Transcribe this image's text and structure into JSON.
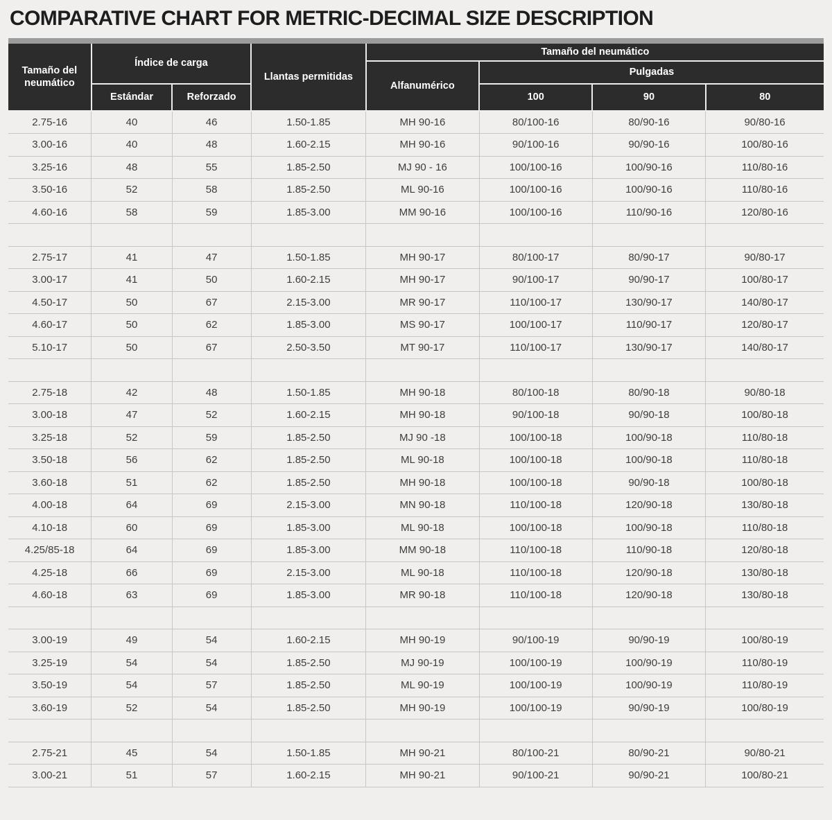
{
  "title": "COMPARATIVE CHART FOR METRIC-DECIMAL SIZE DESCRIPTION",
  "header": {
    "tire_size_left": "Tamaño del neumático",
    "load_index": "Índice de carga",
    "standard": "Estándar",
    "reinforced": "Reforzado",
    "rims": "Llantas permitidas",
    "tire_size_right": "Tamaño del neumático",
    "alphanumeric": "Alfanumérico",
    "inches": "Pulgadas",
    "inch_100": "100",
    "inch_90": "90",
    "inch_80": "80"
  },
  "chart_data": {
    "type": "table",
    "title": "COMPARATIVE CHART FOR METRIC-DECIMAL SIZE DESCRIPTION",
    "columns": [
      "Tamaño del neumático",
      "Índice de carga - Estándar",
      "Índice de carga - Reforzado",
      "Llantas permitidas",
      "Tamaño del neumático - Alfanumérico",
      "Tamaño del neumático - Pulgadas 100",
      "Tamaño del neumático - Pulgadas 90",
      "Tamaño del neumático - Pulgadas 80"
    ],
    "sections": [
      [
        [
          "2.75-16",
          "40",
          "46",
          "1.50-1.85",
          "MH 90-16",
          "80/100-16",
          "80/90-16",
          "90/80-16"
        ],
        [
          "3.00-16",
          "40",
          "48",
          "1.60-2.15",
          "MH 90-16",
          "90/100-16",
          "90/90-16",
          "100/80-16"
        ],
        [
          "3.25-16",
          "48",
          "55",
          "1.85-2.50",
          "MJ 90 - 16",
          "100/100-16",
          "100/90-16",
          "110/80-16"
        ],
        [
          "3.50-16",
          "52",
          "58",
          "1.85-2.50",
          "ML 90-16",
          "100/100-16",
          "100/90-16",
          "110/80-16"
        ],
        [
          "4.60-16",
          "58",
          "59",
          "1.85-3.00",
          "MM 90-16",
          "100/100-16",
          "110/90-16",
          "120/80-16"
        ]
      ],
      [
        [
          "2.75-17",
          "41",
          "47",
          "1.50-1.85",
          "MH 90-17",
          "80/100-17",
          "80/90-17",
          "90/80-17"
        ],
        [
          "3.00-17",
          "41",
          "50",
          "1.60-2.15",
          "MH 90-17",
          "90/100-17",
          "90/90-17",
          "100/80-17"
        ],
        [
          "4.50-17",
          "50",
          "67",
          "2.15-3.00",
          "MR 90-17",
          "110/100-17",
          "130/90-17",
          "140/80-17"
        ],
        [
          "4.60-17",
          "50",
          "62",
          "1.85-3.00",
          "MS 90-17",
          "100/100-17",
          "110/90-17",
          "120/80-17"
        ],
        [
          "5.10-17",
          "50",
          "67",
          "2.50-3.50",
          "MT 90-17",
          "110/100-17",
          "130/90-17",
          "140/80-17"
        ]
      ],
      [
        [
          "2.75-18",
          "42",
          "48",
          "1.50-1.85",
          "MH 90-18",
          "80/100-18",
          "80/90-18",
          "90/80-18"
        ],
        [
          "3.00-18",
          "47",
          "52",
          "1.60-2.15",
          "MH 90-18",
          "90/100-18",
          "90/90-18",
          "100/80-18"
        ],
        [
          "3.25-18",
          "52",
          "59",
          "1.85-2.50",
          "MJ 90 -18",
          "100/100-18",
          "100/90-18",
          "110/80-18"
        ],
        [
          "3.50-18",
          "56",
          "62",
          "1.85-2.50",
          "ML 90-18",
          "100/100-18",
          "100/90-18",
          "110/80-18"
        ],
        [
          "3.60-18",
          "51",
          "62",
          "1.85-2.50",
          "MH 90-18",
          "100/100-18",
          "90/90-18",
          "100/80-18"
        ],
        [
          "4.00-18",
          "64",
          "69",
          "2.15-3.00",
          "MN 90-18",
          "110/100-18",
          "120/90-18",
          "130/80-18"
        ],
        [
          "4.10-18",
          "60",
          "69",
          "1.85-3.00",
          "ML 90-18",
          "100/100-18",
          "100/90-18",
          "110/80-18"
        ],
        [
          "4.25/85-18",
          "64",
          "69",
          "1.85-3.00",
          "MM 90-18",
          "110/100-18",
          "110/90-18",
          "120/80-18"
        ],
        [
          "4.25-18",
          "66",
          "69",
          "2.15-3.00",
          "ML 90-18",
          "110/100-18",
          "120/90-18",
          "130/80-18"
        ],
        [
          "4.60-18",
          "63",
          "69",
          "1.85-3.00",
          "MR 90-18",
          "110/100-18",
          "120/90-18",
          "130/80-18"
        ]
      ],
      [
        [
          "3.00-19",
          "49",
          "54",
          "1.60-2.15",
          "MH 90-19",
          "90/100-19",
          "90/90-19",
          "100/80-19"
        ],
        [
          "3.25-19",
          "54",
          "54",
          "1.85-2.50",
          "MJ 90-19",
          "100/100-19",
          "100/90-19",
          "110/80-19"
        ],
        [
          "3.50-19",
          "54",
          "57",
          "1.85-2.50",
          "ML 90-19",
          "100/100-19",
          "100/90-19",
          "110/80-19"
        ],
        [
          "3.60-19",
          "52",
          "54",
          "1.85-2.50",
          "MH 90-19",
          "100/100-19",
          "90/90-19",
          "100/80-19"
        ]
      ],
      [
        [
          "2.75-21",
          "45",
          "54",
          "1.50-1.85",
          "MH 90-21",
          "80/100-21",
          "80/90-21",
          "90/80-21"
        ],
        [
          "3.00-21",
          "51",
          "57",
          "1.60-2.15",
          "MH 90-21",
          "90/100-21",
          "90/90-21",
          "100/80-21"
        ]
      ]
    ]
  },
  "colors": {
    "page_bg": "#f0efee",
    "header_bg": "#2d2c2c",
    "header_text": "#ffffff",
    "strip": "#9c9c9c",
    "grid_line": "#c6c6c6",
    "cell_text": "#3d3d3d",
    "title_text": "#1d1d1d"
  }
}
